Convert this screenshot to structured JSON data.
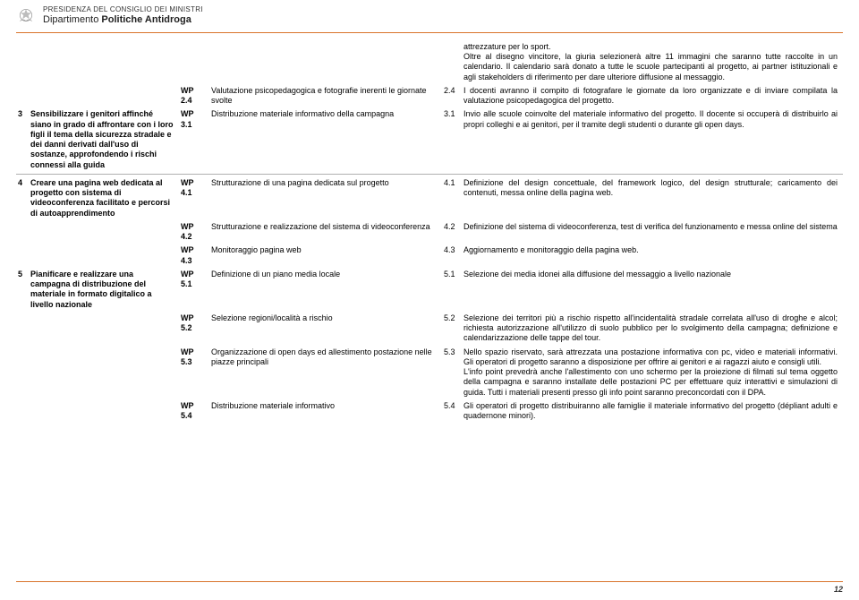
{
  "header": {
    "line1": "PRESIDENZA DEL CONSIGLIO DEI MINISTRI",
    "line2_a": "Dipartimento ",
    "line2_b": "Politiche Antidroga"
  },
  "intro_detail": "attrezzature per lo sport.\nOltre al disegno vincitore, la giuria selezionerà altre 11 immagini che saranno tutte raccolte in un calendario. Il calendario sarà donato a tutte le scuole partecipanti al progetto, ai partner istituzionali e agli stakeholders di riferimento per dare ulteriore diffusione al messaggio.",
  "rows": [
    {
      "num": "",
      "objective": "",
      "wp": "WP 2.4",
      "wp_text": "Valutazione psicopedagogica e fotografie inerenti le giornate svolte",
      "n2": "2.4",
      "detail": "I docenti avranno il compito di fotografare le giornate da loro organizzate e di inviare compilata la valutazione psicopedagogica del progetto."
    },
    {
      "num": "3",
      "objective": "Sensibilizzare i genitori affinché siano in grado di affrontare con i loro figli il tema della sicurezza stradale e dei danni derivati dall'uso di sostanze, approfondendo i rischi connessi alla guida",
      "wp": "WP 3.1",
      "wp_text": "Distribuzione materiale informativo della campagna",
      "n2": "3.1",
      "detail": "Invio alle scuole coinvolte del materiale informativo del progetto. Il docente si occuperà di distribuirlo ai propri colleghi e ai genitori, per il tramite degli studenti o durante gli open days.",
      "preSep": true
    },
    {
      "num": "4",
      "objective": "Creare una pagina web dedicata al progetto con sistema di videoconferenza facilitato e percorsi di autoapprendimento",
      "wp": "WP 4.1",
      "wp_text": "Strutturazione di una pagina dedicata sul progetto",
      "n2": "4.1",
      "detail": "Definizione del design concettuale, del framework logico, del design strutturale; caricamento dei contenuti, messa online della pagina web.",
      "sep": true
    },
    {
      "num": "",
      "objective": "",
      "wp": "WP 4.2",
      "wp_text": "Strutturazione e realizzazione del sistema di videoconferenza",
      "n2": "4.2",
      "detail": "Definizione del sistema di videoconferenza, test di verifica del funzionamento e messa online del sistema"
    },
    {
      "num": "",
      "objective": "",
      "wp": "WP 4.3",
      "wp_text": "Monitoraggio pagina web",
      "n2": "4.3",
      "detail": "Aggiornamento e monitoraggio della pagina web."
    },
    {
      "num": "5",
      "objective": "Pianificare e realizzare una campagna di distribuzione del materiale in formato digitalico a livello nazionale",
      "wp": "WP 5.1",
      "wp_text": "Definizione di un piano media locale",
      "n2": "5.1",
      "detail": "Selezione dei media idonei alla diffusione del messaggio a livello nazionale"
    },
    {
      "num": "",
      "objective": "",
      "wp": "WP 5.2",
      "wp_text": "Selezione regioni/località a rischio",
      "n2": "5.2",
      "detail": "Selezione dei territori più a rischio rispetto all'incidentalità stradale correlata all'uso di droghe e alcol; richiesta autorizzazione all'utilizzo di suolo pubblico per lo svolgimento della campagna; definizione e calendarizzazione delle tappe del tour."
    },
    {
      "num": "",
      "objective": "",
      "wp": "WP 5.3",
      "wp_text": "Organizzazione di open days ed allestimento postazione nelle piazze principali",
      "n2": "5.3",
      "detail": "Nello spazio riservato, sarà attrezzata una postazione informativa con pc, video e materiali informativi. Gli operatori di progetto saranno a disposizione per offrire ai genitori e ai ragazzi aiuto e consigli utili.\nL'info point prevedrà anche l'allestimento con uno schermo per la proiezione di filmati sul tema oggetto della campagna e saranno installate delle postazioni PC per effettuare quiz interattivi e simulazioni di guida. Tutti i materiali presenti presso gli info point saranno preconcordati con il DPA."
    },
    {
      "num": "",
      "objective": "",
      "wp": "WP 5.4",
      "wp_text": "Distribuzione materiale informativo",
      "n2": "5.4",
      "detail": "Gli operatori di progetto distribuiranno alle famiglie il materiale informativo del progetto (dépliant adulti e quadernone minori)."
    }
  ],
  "page_number": "12"
}
